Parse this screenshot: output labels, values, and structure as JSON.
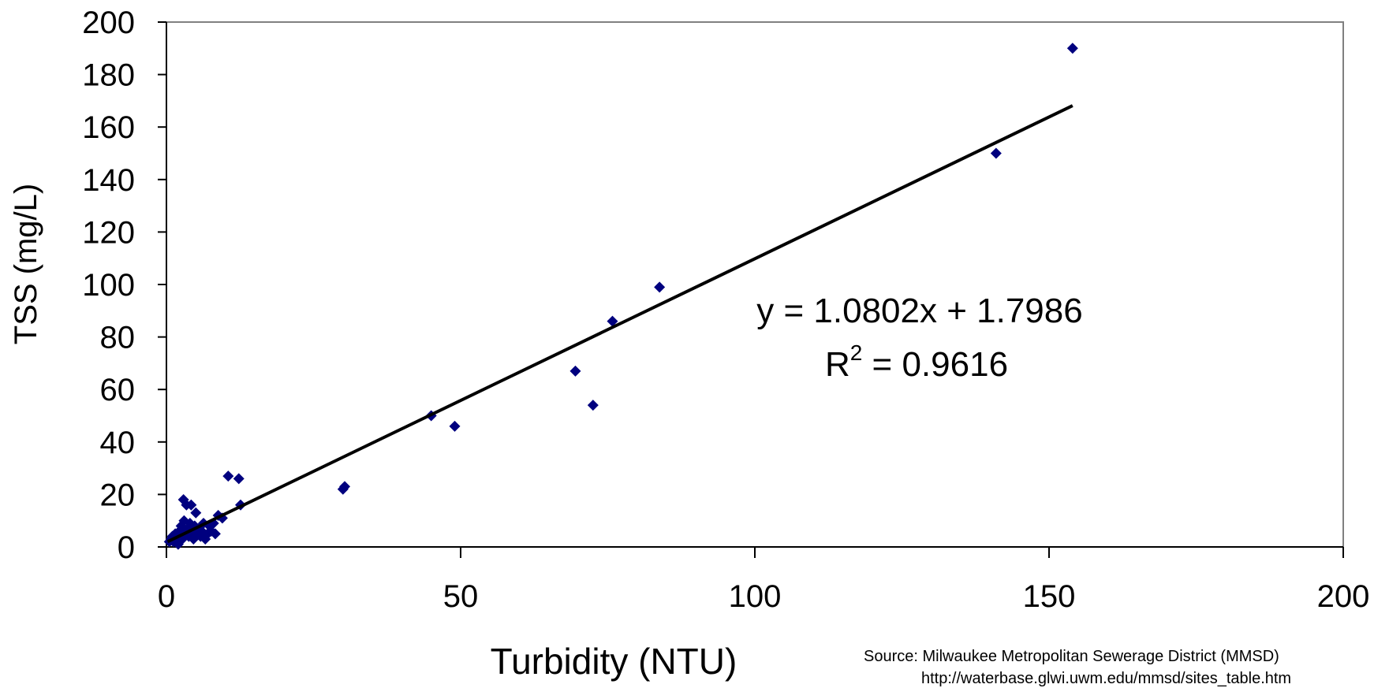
{
  "chart_data": {
    "type": "scatter",
    "title": "",
    "xlabel": "Turbidity (NTU)",
    "ylabel": "TSS (mg/L)",
    "xlim": [
      0,
      200
    ],
    "ylim": [
      0,
      200
    ],
    "x_ticks": [
      "0",
      "50",
      "100",
      "150",
      "200"
    ],
    "y_ticks": [
      "0",
      "20",
      "40",
      "60",
      "80",
      "100",
      "120",
      "140",
      "160",
      "180",
      "200"
    ],
    "grid": false,
    "marker_color": "#00007f",
    "trendline": {
      "slope": 1.0802,
      "intercept": 1.7986,
      "x_range": [
        0.2,
        154
      ],
      "color": "#000000",
      "equation": "y = 1.0802x + 1.7986",
      "r2_prefix": "R",
      "r2_sup": "2",
      "r2_rest": " = 0.9616"
    },
    "points": [
      [
        0.5,
        2
      ],
      [
        0.8,
        3
      ],
      [
        1.0,
        4
      ],
      [
        1.2,
        2
      ],
      [
        1.5,
        5
      ],
      [
        1.8,
        3
      ],
      [
        2.0,
        1
      ],
      [
        2.2,
        6
      ],
      [
        2.4,
        4
      ],
      [
        2.5,
        8
      ],
      [
        2.7,
        3
      ],
      [
        2.9,
        18
      ],
      [
        3.0,
        10
      ],
      [
        3.2,
        5
      ],
      [
        3.4,
        16
      ],
      [
        3.6,
        7
      ],
      [
        3.8,
        4
      ],
      [
        4.0,
        9
      ],
      [
        4.2,
        16
      ],
      [
        4.4,
        6
      ],
      [
        4.6,
        3
      ],
      [
        4.8,
        8
      ],
      [
        5.0,
        13
      ],
      [
        5.2,
        5
      ],
      [
        5.5,
        7
      ],
      [
        5.8,
        4
      ],
      [
        6.0,
        6
      ],
      [
        6.3,
        9
      ],
      [
        6.6,
        3
      ],
      [
        7.0,
        5
      ],
      [
        7.3,
        8
      ],
      [
        7.6,
        6
      ],
      [
        8.0,
        9
      ],
      [
        8.3,
        5
      ],
      [
        8.8,
        12
      ],
      [
        9.5,
        11
      ],
      [
        10.5,
        27
      ],
      [
        12.3,
        26
      ],
      [
        12.6,
        16
      ],
      [
        30.0,
        22
      ],
      [
        30.3,
        23
      ],
      [
        45.0,
        50
      ],
      [
        49.0,
        46
      ],
      [
        69.5,
        67
      ],
      [
        72.5,
        54
      ],
      [
        75.8,
        86
      ],
      [
        83.8,
        99
      ],
      [
        141.0,
        150
      ],
      [
        154.0,
        190
      ]
    ],
    "source_line1": "Source:  Milwaukee Metropolitan Sewerage District (MMSD)",
    "source_line2": "http://waterbase.glwi.uwm.edu/mmsd/sites_table.htm"
  }
}
